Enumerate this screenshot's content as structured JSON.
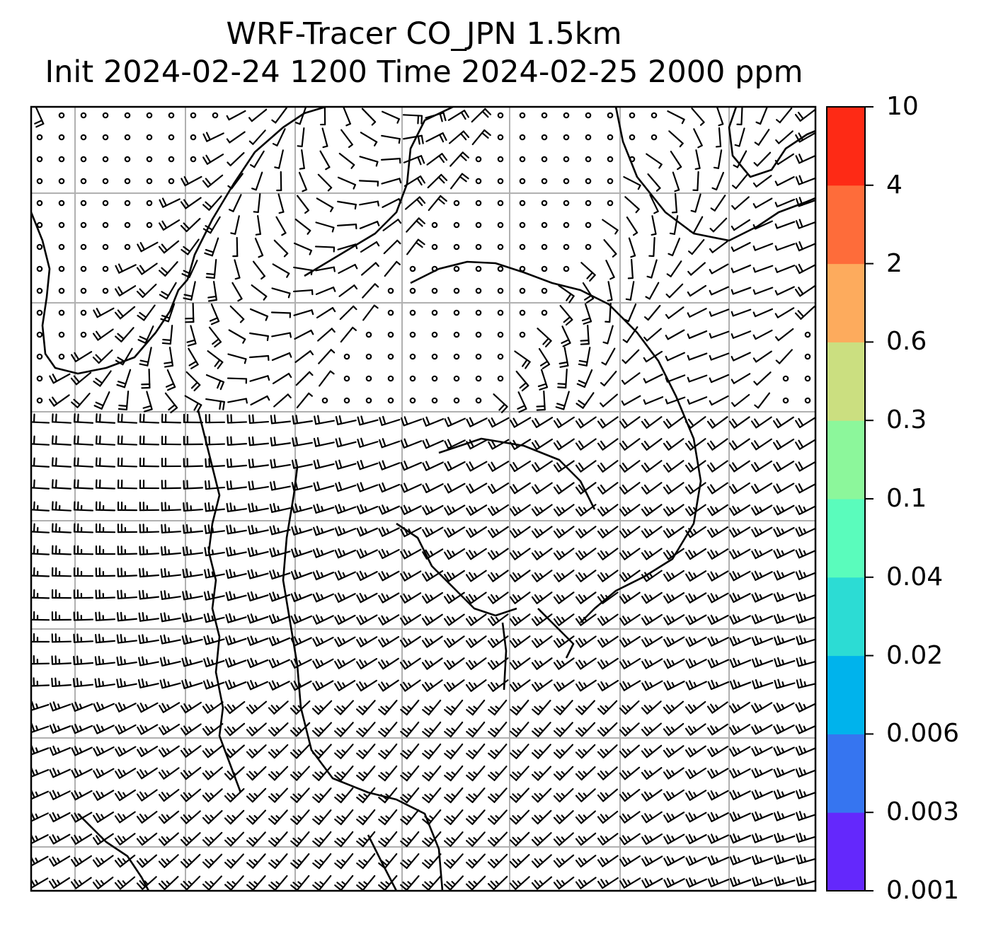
{
  "figure": {
    "title_line1": "WRF-Tracer CO_JPN 1.5km",
    "title_line2": "Init 2024-02-24 1200 Time 2024-02-25 2000 ppm"
  },
  "map": {
    "type": "wind-barb map with coastlines and lat/lon gridlines",
    "gridlines": "on",
    "gridline_color": "#b0b0b0",
    "coastline_color": "#000000",
    "barb_color": "#000000",
    "tracer_fill": "none visible"
  },
  "colorbar": {
    "placement": "right",
    "levels": [
      "0.001",
      "0.003",
      "0.006",
      "0.02",
      "0.04",
      "0.1",
      "0.3",
      "0.6",
      "2",
      "4",
      "10"
    ],
    "colors": [
      "#6428fc",
      "#3675f0",
      "#00b3ec",
      "#2cdcd4",
      "#5afcbc",
      "#8cf79b",
      "#cbdf80",
      "#fdab5d",
      "#fe6c3a",
      "#fe2a15"
    ]
  }
}
